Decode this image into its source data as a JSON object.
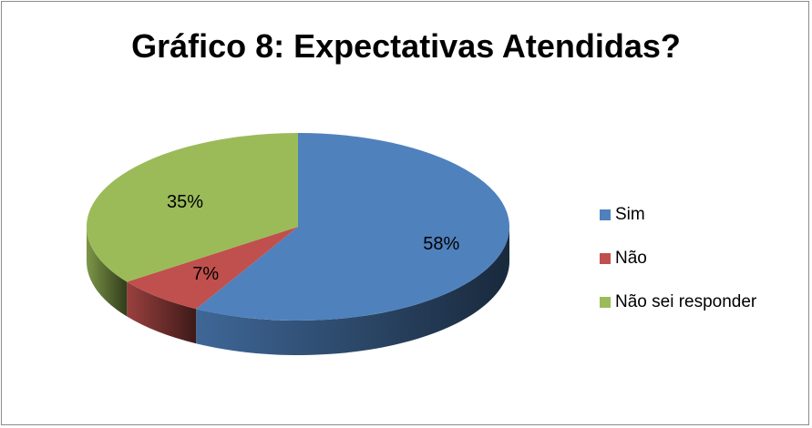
{
  "chart_data": {
    "type": "pie",
    "title": "Gráfico 8: Expectativas Atendidas?",
    "categories": [
      "Sim",
      "Não",
      "Não sei responder"
    ],
    "values": [
      58,
      7,
      35
    ],
    "labels": [
      "58%",
      "7%",
      "35%"
    ],
    "colors": [
      "#4f81bd",
      "#c0504d",
      "#9bbb59"
    ],
    "legend_position": "right",
    "style": "3d"
  }
}
